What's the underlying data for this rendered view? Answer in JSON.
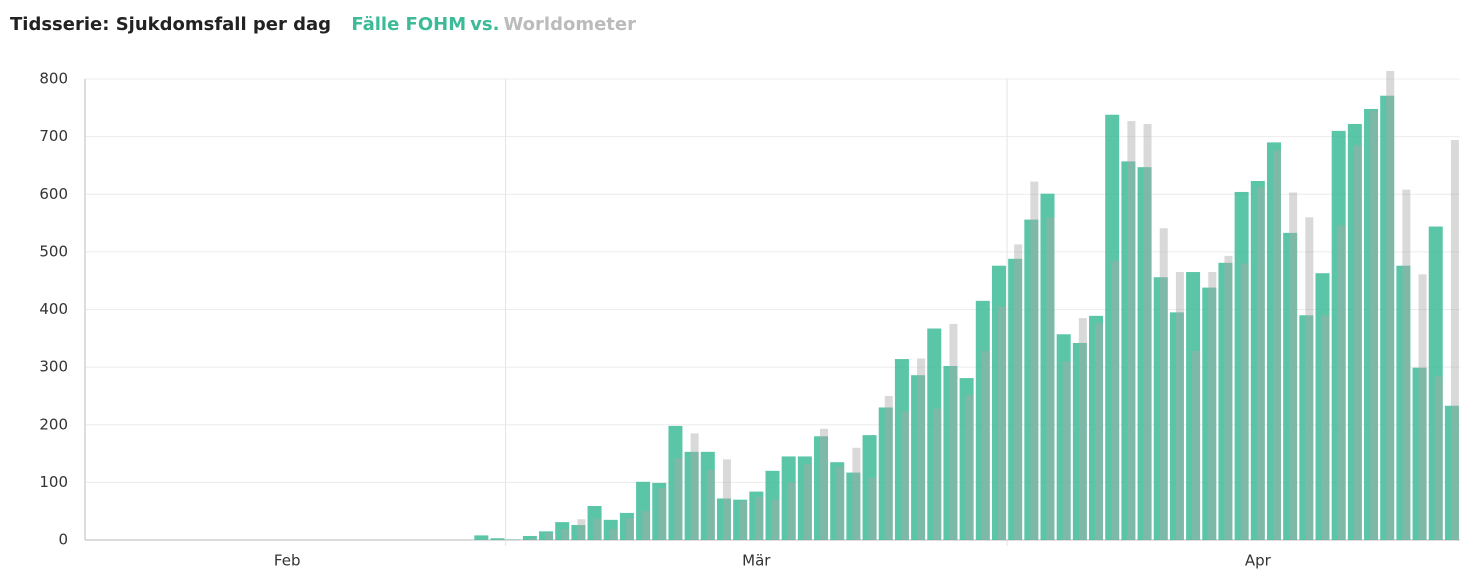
{
  "chart_data": {
    "type": "bar",
    "title": "Tidsserie: Sjukdomsfall per dag",
    "legend_separator": "vs.",
    "categories": [
      null,
      null,
      null,
      null,
      null,
      null,
      null,
      null,
      null,
      null,
      null,
      null,
      "Feb",
      null,
      null,
      null,
      null,
      null,
      null,
      null,
      null,
      null,
      null,
      null,
      null,
      null,
      null,
      null,
      null,
      null,
      null,
      null,
      null,
      null,
      null,
      null,
      null,
      null,
      null,
      null,
      null,
      "Mär",
      null,
      null,
      null,
      null,
      null,
      null,
      null,
      null,
      null,
      null,
      null,
      null,
      null,
      null,
      null,
      null,
      null,
      null,
      null,
      null,
      null,
      null,
      null,
      null,
      null,
      null,
      null,
      null,
      null,
      null,
      "Apr",
      null,
      null,
      null,
      null,
      null,
      null,
      null,
      null,
      null,
      null,
      null,
      null
    ],
    "series": [
      {
        "name": "Fälle FOHM",
        "color": "#3dbb98",
        "values": [
          0,
          0,
          0,
          0,
          0,
          0,
          0,
          0,
          0,
          0,
          0,
          0,
          0,
          0,
          0,
          0,
          0,
          0,
          0,
          0,
          0,
          0,
          0,
          0,
          8,
          3,
          1,
          7,
          15,
          31,
          26,
          59,
          35,
          47,
          101,
          99,
          198,
          153,
          153,
          72,
          70,
          84,
          120,
          145,
          145,
          180,
          135,
          117,
          182,
          230,
          314,
          286,
          367,
          302,
          281,
          415,
          476,
          488,
          556,
          601,
          357,
          342,
          389,
          738,
          657,
          647,
          456,
          395,
          465,
          438,
          481,
          604,
          623,
          690,
          533,
          390,
          463,
          710,
          722,
          748,
          771,
          476,
          299,
          544,
          233
        ]
      },
      {
        "name": "Worldometer",
        "color": "#aaaaaa",
        "values": [
          0,
          0,
          0,
          0,
          0,
          0,
          0,
          0,
          0,
          0,
          0,
          0,
          0,
          0,
          0,
          0,
          0,
          0,
          0,
          0,
          0,
          0,
          0,
          0,
          1,
          1,
          1,
          3,
          12,
          19,
          36,
          37,
          19,
          38,
          50,
          90,
          142,
          185,
          122,
          140,
          68,
          75,
          70,
          100,
          132,
          193,
          127,
          160,
          108,
          250,
          223,
          315,
          228,
          375,
          252,
          328,
          405,
          513,
          622,
          560,
          310,
          385,
          376,
          485,
          727,
          722,
          541,
          465,
          328,
          465,
          493,
          480,
          612,
          676,
          603,
          560,
          390,
          546,
          685,
          745,
          814,
          608,
          461,
          284,
          694
        ]
      }
    ],
    "ylim": [
      0,
      800
    ],
    "yticks": [
      0,
      100,
      200,
      300,
      400,
      500,
      600,
      700,
      800
    ],
    "grid": true
  }
}
